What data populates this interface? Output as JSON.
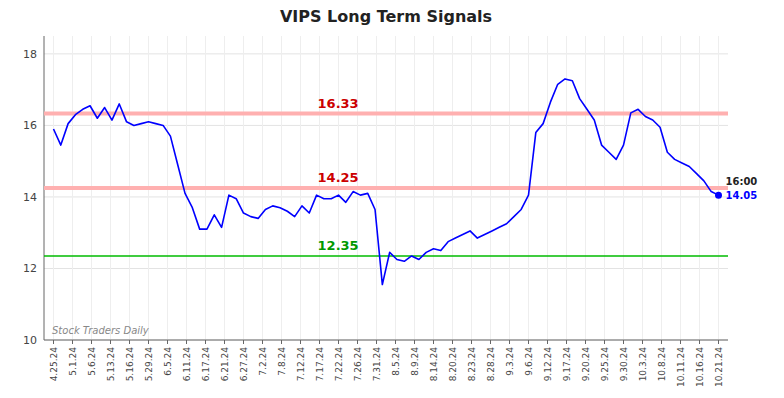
{
  "chart_data": {
    "type": "line",
    "title": "VIPS Long Term Signals",
    "color": "blue",
    "grid": true,
    "xlim": [
      -0.5,
      35.5
    ],
    "xticks": [
      {
        "value": 0,
        "label": "4.25.24"
      },
      {
        "value": 1,
        "label": "5.1.24"
      },
      {
        "value": 2,
        "label": "5.6.24"
      },
      {
        "value": 3,
        "label": "5.13.24"
      },
      {
        "value": 4,
        "label": "5.16.24"
      },
      {
        "value": 5,
        "label": "5.29.24"
      },
      {
        "value": 6,
        "label": "6.5.24"
      },
      {
        "value": 7,
        "label": "6.11.24"
      },
      {
        "value": 8,
        "label": "6.17.24"
      },
      {
        "value": 9,
        "label": "6.21.24"
      },
      {
        "value": 10,
        "label": "6.27.24"
      },
      {
        "value": 11,
        "label": "7.2.24"
      },
      {
        "value": 12,
        "label": "7.8.24"
      },
      {
        "value": 13,
        "label": "7.12.24"
      },
      {
        "value": 14,
        "label": "7.17.24"
      },
      {
        "value": 15,
        "label": "7.22.24"
      },
      {
        "value": 16,
        "label": "7.26.24"
      },
      {
        "value": 17,
        "label": "7.31.24"
      },
      {
        "value": 18,
        "label": "8.5.24"
      },
      {
        "value": 19,
        "label": "8.9.24"
      },
      {
        "value": 20,
        "label": "8.14.24"
      },
      {
        "value": 21,
        "label": "8.20.24"
      },
      {
        "value": 22,
        "label": "8.23.24"
      },
      {
        "value": 23,
        "label": "8.28.24"
      },
      {
        "value": 24,
        "label": "9.3.24"
      },
      {
        "value": 25,
        "label": "9.6.24"
      },
      {
        "value": 26,
        "label": "9.12.24"
      },
      {
        "value": 27,
        "label": "9.17.24"
      },
      {
        "value": 28,
        "label": "9.20.24"
      },
      {
        "value": 29,
        "label": "9.25.24"
      },
      {
        "value": 30,
        "label": "9.30.24"
      },
      {
        "value": 31,
        "label": "10.3.24"
      },
      {
        "value": 32,
        "label": "10.8.24"
      },
      {
        "value": 33,
        "label": "10.11.24"
      },
      {
        "value": 34,
        "label": "10.16.24"
      },
      {
        "value": 35,
        "label": "10.21.24"
      }
    ],
    "ylim": [
      10,
      18.5
    ],
    "yticks": [
      10,
      12,
      14,
      16,
      18
    ],
    "x": [
      0,
      0.3846,
      0.7692,
      1.1538,
      1.5385,
      1.9231,
      2.3077,
      2.6923,
      3.0769,
      3.4615,
      3.8462,
      4.2308,
      4.6154,
      5,
      5.3846,
      5.7692,
      6.1538,
      6.5385,
      6.9231,
      7.3077,
      7.6923,
      8.0769,
      8.4615,
      8.8462,
      9.2308,
      9.6154,
      10,
      10.3846,
      10.7692,
      11.1538,
      11.5385,
      11.9231,
      12.3077,
      12.6923,
      13.0769,
      13.4615,
      13.8462,
      14.2308,
      14.6154,
      15,
      15.3846,
      15.7692,
      16.1538,
      16.5385,
      16.9231,
      17.3077,
      17.6923,
      18.0769,
      18.4615,
      18.8462,
      19.2308,
      19.6154,
      20,
      20.3846,
      20.7692,
      21.1538,
      21.5385,
      21.9231,
      22.3077,
      22.6923,
      23.0769,
      23.4615,
      23.8462,
      24.2308,
      24.6154,
      25,
      25.3846,
      25.7692,
      26.1538,
      26.5385,
      26.9231,
      27.3077,
      27.6923,
      28.0769,
      28.4615,
      28.8462,
      29.2308,
      29.6154,
      30,
      30.3846,
      30.7692,
      31.1538,
      31.5385,
      31.9231,
      32.3077,
      32.6923,
      33.0769,
      33.4615,
      33.8462,
      34.2308,
      34.6154,
      35
    ],
    "values": [
      15.9,
      15.45,
      16.05,
      16.3,
      16.45,
      16.55,
      16.2,
      16.5,
      16.15,
      16.6,
      16.1,
      16.0,
      16.05,
      16.1,
      16.05,
      16.0,
      15.7,
      14.9,
      14.1,
      13.7,
      13.1,
      13.1,
      13.5,
      13.15,
      14.05,
      13.95,
      13.55,
      13.45,
      13.4,
      13.65,
      13.75,
      13.7,
      13.6,
      13.45,
      13.75,
      13.55,
      14.05,
      13.95,
      13.95,
      14.05,
      13.85,
      14.15,
      14.05,
      14.1,
      13.65,
      11.55,
      12.45,
      12.25,
      12.2,
      12.35,
      12.25,
      12.45,
      12.55,
      12.5,
      12.75,
      12.85,
      12.95,
      13.05,
      12.85,
      12.95,
      13.05,
      13.15,
      13.25,
      13.45,
      13.65,
      14.05,
      15.8,
      16.05,
      16.65,
      17.15,
      17.3,
      17.25,
      16.75,
      16.45,
      16.15,
      15.45,
      15.25,
      15.05,
      15.45,
      16.35,
      16.45,
      16.25,
      16.15,
      15.95,
      15.25,
      15.05,
      14.95,
      14.85,
      14.65,
      14.45,
      14.15,
      14.05
    ],
    "reference_lines": [
      {
        "value": 16.33,
        "label": "16.33",
        "color": "#ffb0b0",
        "label_color": "#cc0000"
      },
      {
        "value": 14.25,
        "label": "14.25",
        "color": "#ffb0b0",
        "label_color": "#cc0000"
      },
      {
        "value": 12.35,
        "label": "12.35",
        "color": "#00bb00",
        "label_color": "#009900"
      }
    ],
    "annotations": [
      "16:00",
      "14.05"
    ],
    "watermark": "Stock Traders Daily"
  }
}
